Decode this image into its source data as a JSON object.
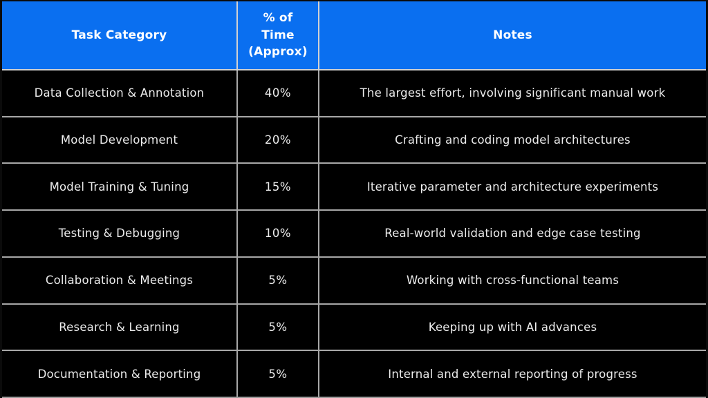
{
  "chart_data": {
    "type": "table",
    "columns": [
      "Task Category",
      "% of Time (Approx)",
      "Notes"
    ],
    "rows": [
      [
        "Data Collection & Annotation",
        "40%",
        "The largest effort, involving significant manual work"
      ],
      [
        "Model Development",
        "20%",
        "Crafting and coding model architectures"
      ],
      [
        "Model Training & Tuning",
        "15%",
        "Iterative parameter and architecture experiments"
      ],
      [
        "Testing & Debugging",
        "10%",
        "Real-world validation and edge case testing"
      ],
      [
        "Collaboration & Meetings",
        "5%",
        "Working with cross-functional teams"
      ],
      [
        "Research & Learning",
        "5%",
        "Keeping up with AI advances"
      ],
      [
        "Documentation & Reporting",
        "5%",
        "Internal and external reporting of progress"
      ]
    ],
    "layout": {
      "header_position": "top",
      "grid": true,
      "column_alignment": [
        "center",
        "center",
        "center"
      ]
    }
  },
  "colors": {
    "header_background": "#0a6ff0",
    "header_text": "#ffffff",
    "row_background": "#000000",
    "row_text": "#ececec",
    "grid_line": "#a8a8a8",
    "outer_edge": "#0b0b0b"
  }
}
